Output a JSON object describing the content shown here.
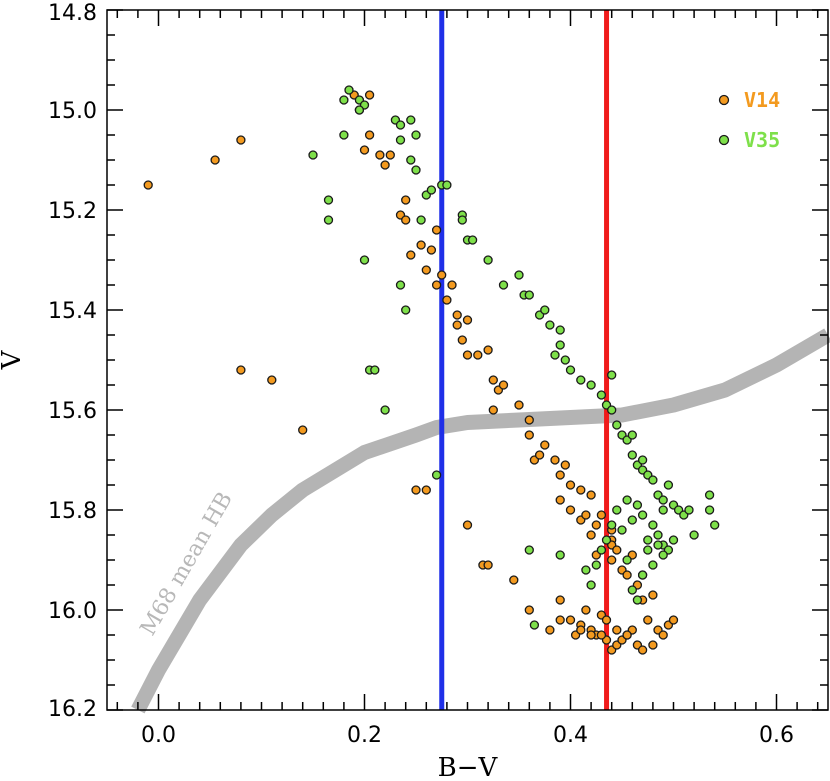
{
  "chart_data": {
    "type": "scatter",
    "title": "",
    "xlabel": "B−V",
    "ylabel": "V",
    "xlim": [
      -0.05,
      0.65
    ],
    "ylim": [
      16.2,
      14.8
    ],
    "y_inverted": true,
    "x_ticks": [
      {
        "value": 0.0,
        "label": "0.0"
      },
      {
        "value": 0.2,
        "label": "0.2"
      },
      {
        "value": 0.4,
        "label": "0.4"
      },
      {
        "value": 0.6,
        "label": "0.6"
      }
    ],
    "y_ticks": [
      {
        "value": 14.8,
        "label": "14.8"
      },
      {
        "value": 15.0,
        "label": "15.0"
      },
      {
        "value": 15.2,
        "label": "15.2"
      },
      {
        "value": 15.4,
        "label": "15.4"
      },
      {
        "value": 15.6,
        "label": "15.6"
      },
      {
        "value": 15.8,
        "label": "15.8"
      },
      {
        "value": 16.0,
        "label": "16.0"
      },
      {
        "value": 16.2,
        "label": "16.2"
      }
    ],
    "legend_position": "top-right",
    "series": [
      {
        "name": "V14",
        "color": "#f39a1f",
        "points": [
          [
            -0.01,
            15.15
          ],
          [
            0.055,
            15.1
          ],
          [
            0.08,
            15.06
          ],
          [
            0.08,
            15.52
          ],
          [
            0.11,
            15.54
          ],
          [
            0.14,
            15.64
          ],
          [
            0.195,
            15.0
          ],
          [
            0.19,
            14.97
          ],
          [
            0.205,
            14.97
          ],
          [
            0.2,
            15.08
          ],
          [
            0.205,
            15.05
          ],
          [
            0.215,
            15.09
          ],
          [
            0.22,
            15.11
          ],
          [
            0.225,
            15.09
          ],
          [
            0.235,
            15.21
          ],
          [
            0.24,
            15.18
          ],
          [
            0.24,
            15.22
          ],
          [
            0.245,
            15.29
          ],
          [
            0.255,
            15.27
          ],
          [
            0.26,
            15.32
          ],
          [
            0.265,
            15.28
          ],
          [
            0.27,
            15.35
          ],
          [
            0.27,
            15.24
          ],
          [
            0.275,
            15.33
          ],
          [
            0.28,
            15.38
          ],
          [
            0.285,
            15.35
          ],
          [
            0.29,
            15.41
          ],
          [
            0.29,
            15.43
          ],
          [
            0.295,
            15.46
          ],
          [
            0.3,
            15.42
          ],
          [
            0.3,
            15.49
          ],
          [
            0.31,
            15.49
          ],
          [
            0.32,
            15.48
          ],
          [
            0.325,
            15.54
          ],
          [
            0.33,
            15.56
          ],
          [
            0.335,
            15.55
          ],
          [
            0.325,
            15.6
          ],
          [
            0.35,
            15.59
          ],
          [
            0.36,
            15.62
          ],
          [
            0.36,
            15.65
          ],
          [
            0.365,
            15.7
          ],
          [
            0.37,
            15.69
          ],
          [
            0.375,
            15.67
          ],
          [
            0.385,
            15.7
          ],
          [
            0.39,
            15.73
          ],
          [
            0.395,
            15.71
          ],
          [
            0.39,
            15.78
          ],
          [
            0.4,
            15.75
          ],
          [
            0.4,
            15.8
          ],
          [
            0.41,
            15.76
          ],
          [
            0.41,
            15.82
          ],
          [
            0.415,
            15.81
          ],
          [
            0.42,
            15.77
          ],
          [
            0.42,
            15.85
          ],
          [
            0.425,
            15.83
          ],
          [
            0.425,
            15.89
          ],
          [
            0.43,
            15.81
          ],
          [
            0.44,
            15.86
          ],
          [
            0.44,
            15.87
          ],
          [
            0.44,
            15.9
          ],
          [
            0.445,
            15.88
          ],
          [
            0.45,
            15.92
          ],
          [
            0.455,
            15.93
          ],
          [
            0.46,
            15.89
          ],
          [
            0.47,
            15.93
          ],
          [
            0.25,
            15.76
          ],
          [
            0.26,
            15.76
          ],
          [
            0.3,
            15.83
          ],
          [
            0.315,
            15.91
          ],
          [
            0.32,
            15.91
          ],
          [
            0.345,
            15.94
          ],
          [
            0.36,
            16.0
          ],
          [
            0.38,
            16.04
          ],
          [
            0.39,
            15.98
          ],
          [
            0.39,
            16.02
          ],
          [
            0.4,
            16.02
          ],
          [
            0.405,
            16.05
          ],
          [
            0.41,
            16.03
          ],
          [
            0.415,
            16.0
          ],
          [
            0.42,
            16.04
          ],
          [
            0.425,
            16.05
          ],
          [
            0.43,
            16.01
          ],
          [
            0.435,
            16.06
          ],
          [
            0.44,
            16.08
          ],
          [
            0.445,
            16.07
          ],
          [
            0.45,
            16.06
          ],
          [
            0.455,
            16.05
          ],
          [
            0.46,
            16.04
          ],
          [
            0.465,
            16.07
          ],
          [
            0.47,
            16.08
          ],
          [
            0.475,
            16.02
          ],
          [
            0.48,
            16.07
          ],
          [
            0.485,
            16.04
          ],
          [
            0.49,
            16.05
          ],
          [
            0.495,
            16.03
          ],
          [
            0.5,
            16.02
          ],
          [
            0.48,
            15.97
          ],
          [
            0.47,
            15.98
          ],
          [
            0.465,
            15.95
          ],
          [
            0.455,
            16.05
          ],
          [
            0.445,
            16.04
          ],
          [
            0.435,
            16.02
          ],
          [
            0.43,
            16.05
          ],
          [
            0.42,
            16.05
          ],
          [
            0.41,
            16.04
          ],
          [
            0.44,
            15.84
          ]
        ]
      },
      {
        "name": "V35",
        "color": "#7ee04a",
        "points": [
          [
            0.185,
            14.96
          ],
          [
            0.18,
            14.98
          ],
          [
            0.195,
            14.98
          ],
          [
            0.2,
            14.99
          ],
          [
            0.195,
            15.0
          ],
          [
            0.18,
            15.05
          ],
          [
            0.15,
            15.09
          ],
          [
            0.165,
            15.18
          ],
          [
            0.165,
            15.22
          ],
          [
            0.2,
            15.3
          ],
          [
            0.205,
            15.52
          ],
          [
            0.22,
            15.6
          ],
          [
            0.23,
            15.02
          ],
          [
            0.235,
            15.03
          ],
          [
            0.245,
            15.02
          ],
          [
            0.25,
            15.05
          ],
          [
            0.235,
            15.06
          ],
          [
            0.245,
            15.1
          ],
          [
            0.25,
            15.12
          ],
          [
            0.26,
            15.17
          ],
          [
            0.265,
            15.16
          ],
          [
            0.255,
            15.22
          ],
          [
            0.275,
            15.15
          ],
          [
            0.235,
            15.35
          ],
          [
            0.24,
            15.4
          ],
          [
            0.295,
            15.21
          ],
          [
            0.295,
            15.22
          ],
          [
            0.3,
            15.26
          ],
          [
            0.305,
            15.26
          ],
          [
            0.32,
            15.3
          ],
          [
            0.335,
            15.35
          ],
          [
            0.35,
            15.33
          ],
          [
            0.355,
            15.37
          ],
          [
            0.36,
            15.37
          ],
          [
            0.37,
            15.41
          ],
          [
            0.375,
            15.4
          ],
          [
            0.38,
            15.43
          ],
          [
            0.385,
            15.49
          ],
          [
            0.39,
            15.44
          ],
          [
            0.39,
            15.47
          ],
          [
            0.395,
            15.5
          ],
          [
            0.4,
            15.52
          ],
          [
            0.41,
            15.54
          ],
          [
            0.42,
            15.55
          ],
          [
            0.43,
            15.57
          ],
          [
            0.435,
            15.59
          ],
          [
            0.44,
            15.53
          ],
          [
            0.44,
            15.6
          ],
          [
            0.445,
            15.63
          ],
          [
            0.45,
            15.65
          ],
          [
            0.455,
            15.66
          ],
          [
            0.46,
            15.65
          ],
          [
            0.46,
            15.69
          ],
          [
            0.465,
            15.71
          ],
          [
            0.47,
            15.7
          ],
          [
            0.47,
            15.72
          ],
          [
            0.475,
            15.73
          ],
          [
            0.48,
            15.74
          ],
          [
            0.485,
            15.77
          ],
          [
            0.49,
            15.78
          ],
          [
            0.49,
            15.8
          ],
          [
            0.495,
            15.75
          ],
          [
            0.5,
            15.79
          ],
          [
            0.505,
            15.8
          ],
          [
            0.51,
            15.81
          ],
          [
            0.515,
            15.8
          ],
          [
            0.52,
            15.85
          ],
          [
            0.535,
            15.77
          ],
          [
            0.535,
            15.8
          ],
          [
            0.54,
            15.83
          ],
          [
            0.455,
            15.78
          ],
          [
            0.46,
            15.82
          ],
          [
            0.465,
            15.79
          ],
          [
            0.47,
            15.81
          ],
          [
            0.475,
            15.86
          ],
          [
            0.48,
            15.83
          ],
          [
            0.485,
            15.85
          ],
          [
            0.49,
            15.87
          ],
          [
            0.495,
            15.88
          ],
          [
            0.5,
            15.86
          ],
          [
            0.45,
            15.84
          ],
          [
            0.445,
            15.8
          ],
          [
            0.44,
            15.83
          ],
          [
            0.435,
            15.86
          ],
          [
            0.43,
            15.88
          ],
          [
            0.425,
            15.91
          ],
          [
            0.455,
            15.9
          ],
          [
            0.46,
            15.96
          ],
          [
            0.465,
            15.98
          ],
          [
            0.47,
            15.93
          ],
          [
            0.475,
            15.88
          ],
          [
            0.48,
            15.91
          ],
          [
            0.485,
            15.87
          ],
          [
            0.49,
            15.89
          ],
          [
            0.36,
            15.88
          ],
          [
            0.365,
            16.03
          ],
          [
            0.39,
            15.89
          ],
          [
            0.415,
            15.92
          ],
          [
            0.42,
            15.95
          ],
          [
            0.28,
            15.15
          ],
          [
            0.27,
            15.73
          ],
          [
            0.21,
            15.52
          ]
        ]
      }
    ],
    "vertical_lines": [
      {
        "x": 0.275,
        "color": "#1f2fe8"
      },
      {
        "x": 0.435,
        "color": "#f01b1b"
      }
    ],
    "reference_curve": {
      "label": "M68 mean HB",
      "color": "#b4b4b4",
      "points": [
        [
          -0.02,
          16.2
        ],
        [
          0.0,
          16.12
        ],
        [
          0.04,
          15.98
        ],
        [
          0.08,
          15.87
        ],
        [
          0.11,
          15.81
        ],
        [
          0.14,
          15.76
        ],
        [
          0.2,
          15.685
        ],
        [
          0.25,
          15.65
        ],
        [
          0.27,
          15.635
        ],
        [
          0.3,
          15.625
        ],
        [
          0.35,
          15.62
        ],
        [
          0.4,
          15.615
        ],
        [
          0.45,
          15.61
        ],
        [
          0.5,
          15.59
        ],
        [
          0.55,
          15.56
        ],
        [
          0.6,
          15.51
        ],
        [
          0.65,
          15.45
        ]
      ]
    }
  }
}
